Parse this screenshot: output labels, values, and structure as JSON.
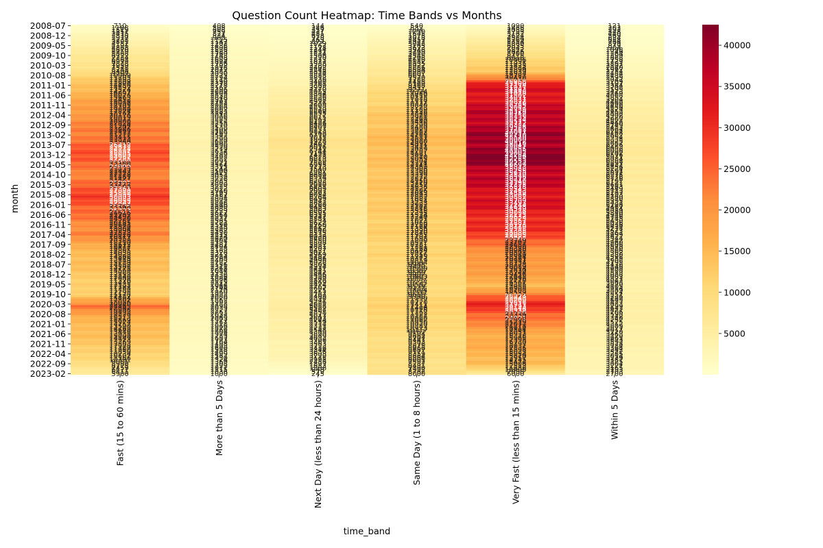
{
  "chart_data": {
    "type": "heatmap",
    "title": "Question Count Heatmap: Time Bands vs Months",
    "xlabel": "time_band",
    "ylabel": "month",
    "x_categories": [
      "Fast (15 to 60 mins)",
      "More than 5 Days",
      "Next Day (less than 24 hours)",
      "Same Day (1 to 8 hours)",
      "Very Fast (less than 15 mins)",
      "Within 5 Days"
    ],
    "y_start": "2008-07",
    "y_end": "2023-02",
    "y_tick_labels": [
      "2008-07",
      "2008-12",
      "2009-05",
      "2009-10",
      "2010-03",
      "2010-08",
      "2011-01",
      "2011-06",
      "2011-11",
      "2012-04",
      "2012-09",
      "2013-02",
      "2013-07",
      "2013-12",
      "2014-05",
      "2014-10",
      "2015-03",
      "2015-08",
      "2016-01",
      "2016-06",
      "2016-11",
      "2017-04",
      "2017-09",
      "2018-02",
      "2018-07",
      "2018-12",
      "2019-05",
      "2019-10",
      "2020-03",
      "2020-08",
      "2021-01",
      "2021-06",
      "2021-11",
      "2022-04",
      "2022-09",
      "2023-02"
    ],
    "first_row_values": [
      710,
      408,
      144,
      540,
      1090,
      121
    ],
    "last_row_values": [
      5900,
      1000,
      245,
      8000,
      6000,
      2700
    ],
    "series_key_points": [
      {
        "name": "Fast (15 to 60 mins)",
        "points": [
          [
            "2008-07",
            710
          ],
          [
            "2009-06",
            5000
          ],
          [
            "2010-06",
            9000
          ],
          [
            "2011-01",
            14000
          ],
          [
            "2012-01",
            19000
          ],
          [
            "2013-01",
            22500
          ],
          [
            "2014-02",
            27000
          ],
          [
            "2014-10",
            20375
          ],
          [
            "2015-03",
            26000
          ],
          [
            "2015-10",
            27500
          ],
          [
            "2016-06",
            24000
          ],
          [
            "2016-11",
            19912
          ],
          [
            "2017-04",
            23000
          ],
          [
            "2017-09",
            16000
          ],
          [
            "2018-07",
            14000
          ],
          [
            "2019-10",
            11000
          ],
          [
            "2020-04",
            23900
          ],
          [
            "2020-09",
            16000
          ],
          [
            "2021-06",
            14000
          ],
          [
            "2022-04",
            11500
          ],
          [
            "2023-02",
            5900
          ]
        ]
      },
      {
        "name": "More than 5 Days",
        "points": [
          [
            "2008-07",
            408
          ],
          [
            "2009-06",
            1500
          ],
          [
            "2010-06",
            2000
          ],
          [
            "2011-06",
            2600
          ],
          [
            "2012-06",
            3200
          ],
          [
            "2013-06",
            3600
          ],
          [
            "2014-06",
            3300
          ],
          [
            "2015-06",
            3000
          ],
          [
            "2016-06",
            2700
          ],
          [
            "2017-06",
            2400
          ],
          [
            "2018-06",
            2200
          ],
          [
            "2019-06",
            2000
          ],
          [
            "2020-06",
            2100
          ],
          [
            "2021-06",
            1800
          ],
          [
            "2022-06",
            1400
          ],
          [
            "2023-02",
            1000
          ]
        ]
      },
      {
        "name": "Next Day (less than 24 hours)",
        "points": [
          [
            "2008-07",
            144
          ],
          [
            "2009-06",
            1200
          ],
          [
            "2010-06",
            2500
          ],
          [
            "2011-06",
            4500
          ],
          [
            "2012-06",
            6200
          ],
          [
            "2013-06",
            7600
          ],
          [
            "2014-06",
            7000
          ],
          [
            "2015-06",
            6500
          ],
          [
            "2016-06",
            6000
          ],
          [
            "2017-06",
            5600
          ],
          [
            "2018-06",
            5000
          ],
          [
            "2019-06",
            4400
          ],
          [
            "2020-06",
            5200
          ],
          [
            "2021-06",
            4000
          ],
          [
            "2022-06",
            3200
          ],
          [
            "2023-02",
            245
          ]
        ]
      },
      {
        "name": "Same Day (1 to 8 hours)",
        "points": [
          [
            "2008-07",
            540
          ],
          [
            "2009-06",
            3500
          ],
          [
            "2010-06",
            6500
          ],
          [
            "2011-06",
            10500
          ],
          [
            "2012-06",
            13000
          ],
          [
            "2013-06",
            14500
          ],
          [
            "2014-06",
            13500
          ],
          [
            "2015-06",
            13000
          ],
          [
            "2016-06",
            12200
          ],
          [
            "2017-06",
            11500
          ],
          [
            "2018-06",
            10500
          ],
          [
            "2019-06",
            9800
          ],
          [
            "2020-06",
            11500
          ],
          [
            "2021-06",
            9500
          ],
          [
            "2022-06",
            8500
          ],
          [
            "2023-02",
            8000
          ]
        ]
      },
      {
        "name": "Very Fast (less than 15 mins)",
        "points": [
          [
            "2008-07",
            1090
          ],
          [
            "2009-06",
            7000
          ],
          [
            "2010-06",
            13000
          ],
          [
            "2011-01",
            32000
          ],
          [
            "2011-06",
            33000
          ],
          [
            "2012-06",
            37000
          ],
          [
            "2013-06",
            39500
          ],
          [
            "2014-02",
            42000
          ],
          [
            "2014-10",
            36000
          ],
          [
            "2015-06",
            34500
          ],
          [
            "2016-06",
            31500
          ],
          [
            "2017-06",
            27500
          ],
          [
            "2018-01",
            18705
          ],
          [
            "2018-07",
            20080
          ],
          [
            "2019-06",
            15000
          ],
          [
            "2020-04",
            31677
          ],
          [
            "2020-09",
            24000
          ],
          [
            "2021-06",
            17000
          ],
          [
            "2022-09",
            14872
          ],
          [
            "2023-02",
            6000
          ]
        ]
      },
      {
        "name": "Within 5 Days",
        "points": [
          [
            "2008-07",
            121
          ],
          [
            "2009-06",
            1000
          ],
          [
            "2010-06",
            2300
          ],
          [
            "2011-06",
            4000
          ],
          [
            "2012-06",
            5200
          ],
          [
            "2013-06",
            6300
          ],
          [
            "2014-06",
            6000
          ],
          [
            "2015-06",
            5600
          ],
          [
            "2016-06",
            5200
          ],
          [
            "2017-06",
            4800
          ],
          [
            "2018-06",
            4300
          ],
          [
            "2019-06",
            4000
          ],
          [
            "2020-06",
            4600
          ],
          [
            "2021-06",
            3800
          ],
          [
            "2022-06",
            3300
          ],
          [
            "2023-02",
            2700
          ]
        ]
      }
    ],
    "value_range": [
      0,
      42500
    ],
    "colorbar_ticks": [
      5000,
      10000,
      15000,
      20000,
      25000,
      30000,
      35000,
      40000
    ],
    "colormap": "YlOrRd",
    "colormap_stops": [
      "#ffffcc",
      "#ffeda0",
      "#fed976",
      "#feb24c",
      "#fd8d3c",
      "#fc4e2a",
      "#e31a1c",
      "#bd0026",
      "#800026"
    ],
    "annotated": true,
    "grid": false
  }
}
